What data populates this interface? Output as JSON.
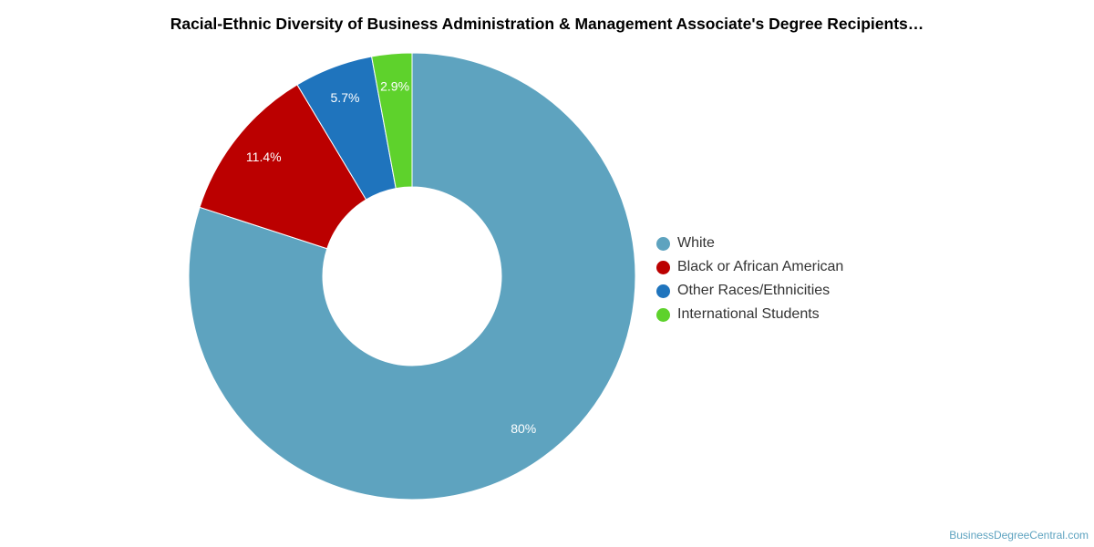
{
  "chart_data": {
    "type": "pie",
    "donut": true,
    "title": "Racial-Ethnic Diversity of Business Administration & Management Associate's Degree Recipients…",
    "categories": [
      "White",
      "Black or African American",
      "Other Races/Ethnicities",
      "International Students"
    ],
    "values": [
      80.0,
      11.4,
      5.7,
      2.9
    ],
    "value_labels": [
      "80%",
      "11.4%",
      "5.7%",
      "2.9%"
    ],
    "colors": [
      "#5ea3bf",
      "#bb0000",
      "#1f74bd",
      "#5ed22c"
    ],
    "legend_position": "right"
  },
  "watermark": "BusinessDegreeCentral.com"
}
